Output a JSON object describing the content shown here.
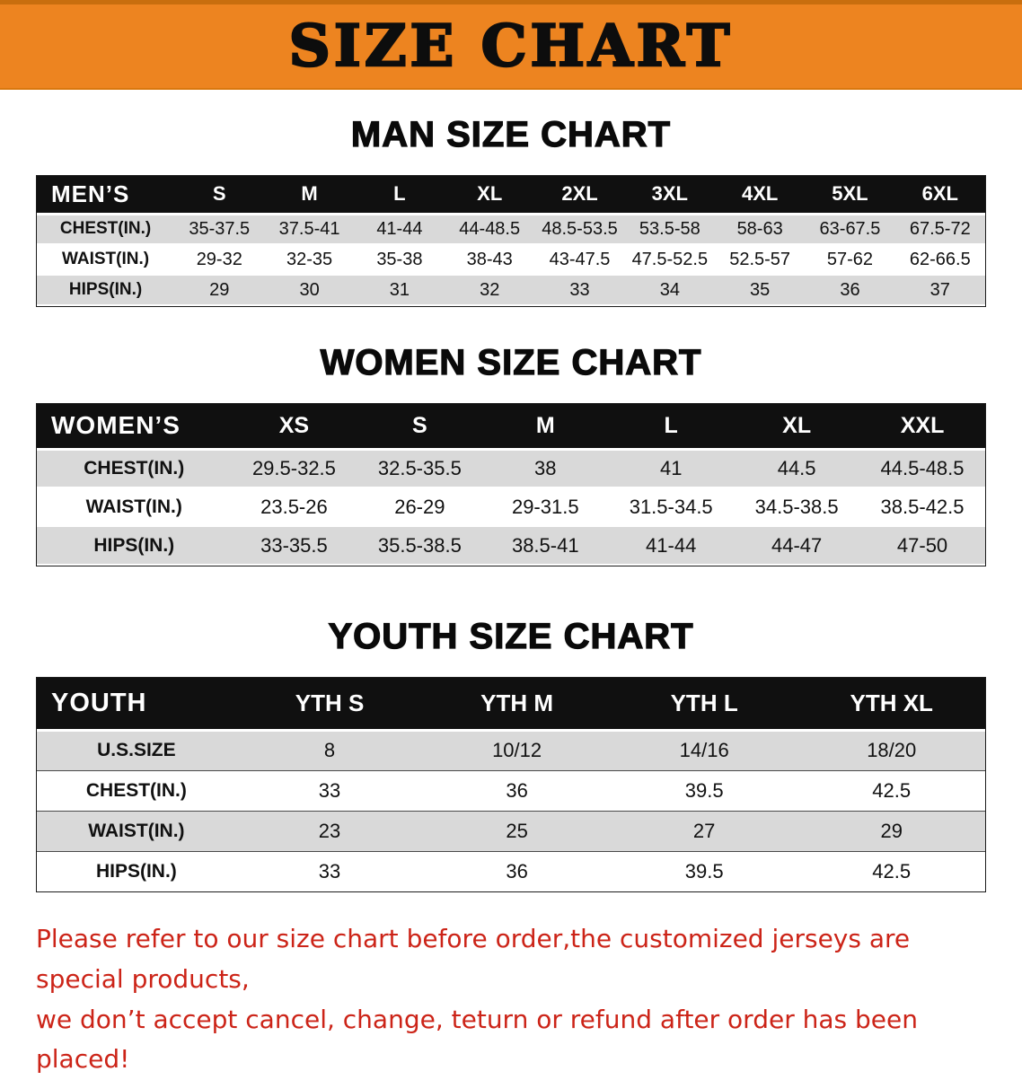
{
  "banner": {
    "title": "SIZE CHART"
  },
  "sections": {
    "men": {
      "heading": "MAN SIZE CHART",
      "table": {
        "group_label": "MEN’S",
        "columns": [
          "S",
          "M",
          "L",
          "XL",
          "2XL",
          "3XL",
          "4XL",
          "5XL",
          "6XL"
        ],
        "rows": [
          {
            "label": "CHEST(IN.)",
            "values": [
              "35-37.5",
              "37.5-41",
              "41-44",
              "44-48.5",
              "48.5-53.5",
              "53.5-58",
              "58-63",
              "63-67.5",
              "67.5-72"
            ]
          },
          {
            "label": "WAIST(IN.)",
            "values": [
              "29-32",
              "32-35",
              "35-38",
              "38-43",
              "43-47.5",
              "47.5-52.5",
              "52.5-57",
              "57-62",
              "62-66.5"
            ]
          },
          {
            "label": "HIPS(IN.)",
            "values": [
              "29",
              "30",
              "31",
              "32",
              "33",
              "34",
              "35",
              "36",
              "37"
            ]
          }
        ]
      }
    },
    "women": {
      "heading": "WOMEN SIZE CHART",
      "table": {
        "group_label": "WOMEN’S",
        "columns": [
          "XS",
          "S",
          "M",
          "L",
          "XL",
          "XXL"
        ],
        "rows": [
          {
            "label": "CHEST(IN.)",
            "values": [
              "29.5-32.5",
              "32.5-35.5",
              "38",
              "41",
              "44.5",
              "44.5-48.5"
            ]
          },
          {
            "label": "WAIST(IN.)",
            "values": [
              "23.5-26",
              "26-29",
              "29-31.5",
              "31.5-34.5",
              "34.5-38.5",
              "38.5-42.5"
            ]
          },
          {
            "label": "HIPS(IN.)",
            "values": [
              "33-35.5",
              "35.5-38.5",
              "38.5-41",
              "41-44",
              "44-47",
              "47-50"
            ]
          }
        ]
      }
    },
    "youth": {
      "heading": "YOUTH SIZE CHART",
      "table": {
        "group_label": "YOUTH",
        "columns": [
          "YTH S",
          "YTH M",
          "YTH L",
          "YTH XL"
        ],
        "rows": [
          {
            "label": "U.S.SIZE",
            "values": [
              "8",
              "10/12",
              "14/16",
              "18/20"
            ]
          },
          {
            "label": "CHEST(IN.)",
            "values": [
              "33",
              "36",
              "39.5",
              "42.5"
            ]
          },
          {
            "label": "WAIST(IN.)",
            "values": [
              "23",
              "25",
              "27",
              "29"
            ]
          },
          {
            "label": "HIPS(IN.)",
            "values": [
              "33",
              "36",
              "39.5",
              "42.5"
            ]
          }
        ]
      }
    }
  },
  "footer": {
    "line1": "Please refer to our size chart before order,the customized jerseys are special products,",
    "line2": "we don’t accept cancel, change, teturn or refund after order has been placed!"
  },
  "colors": {
    "banner_bg": "#ED8420",
    "header_bg": "#101010",
    "header_text": "#FFFFFF",
    "row_shade": "#D9D9D9",
    "footer_text": "#CC2418"
  }
}
